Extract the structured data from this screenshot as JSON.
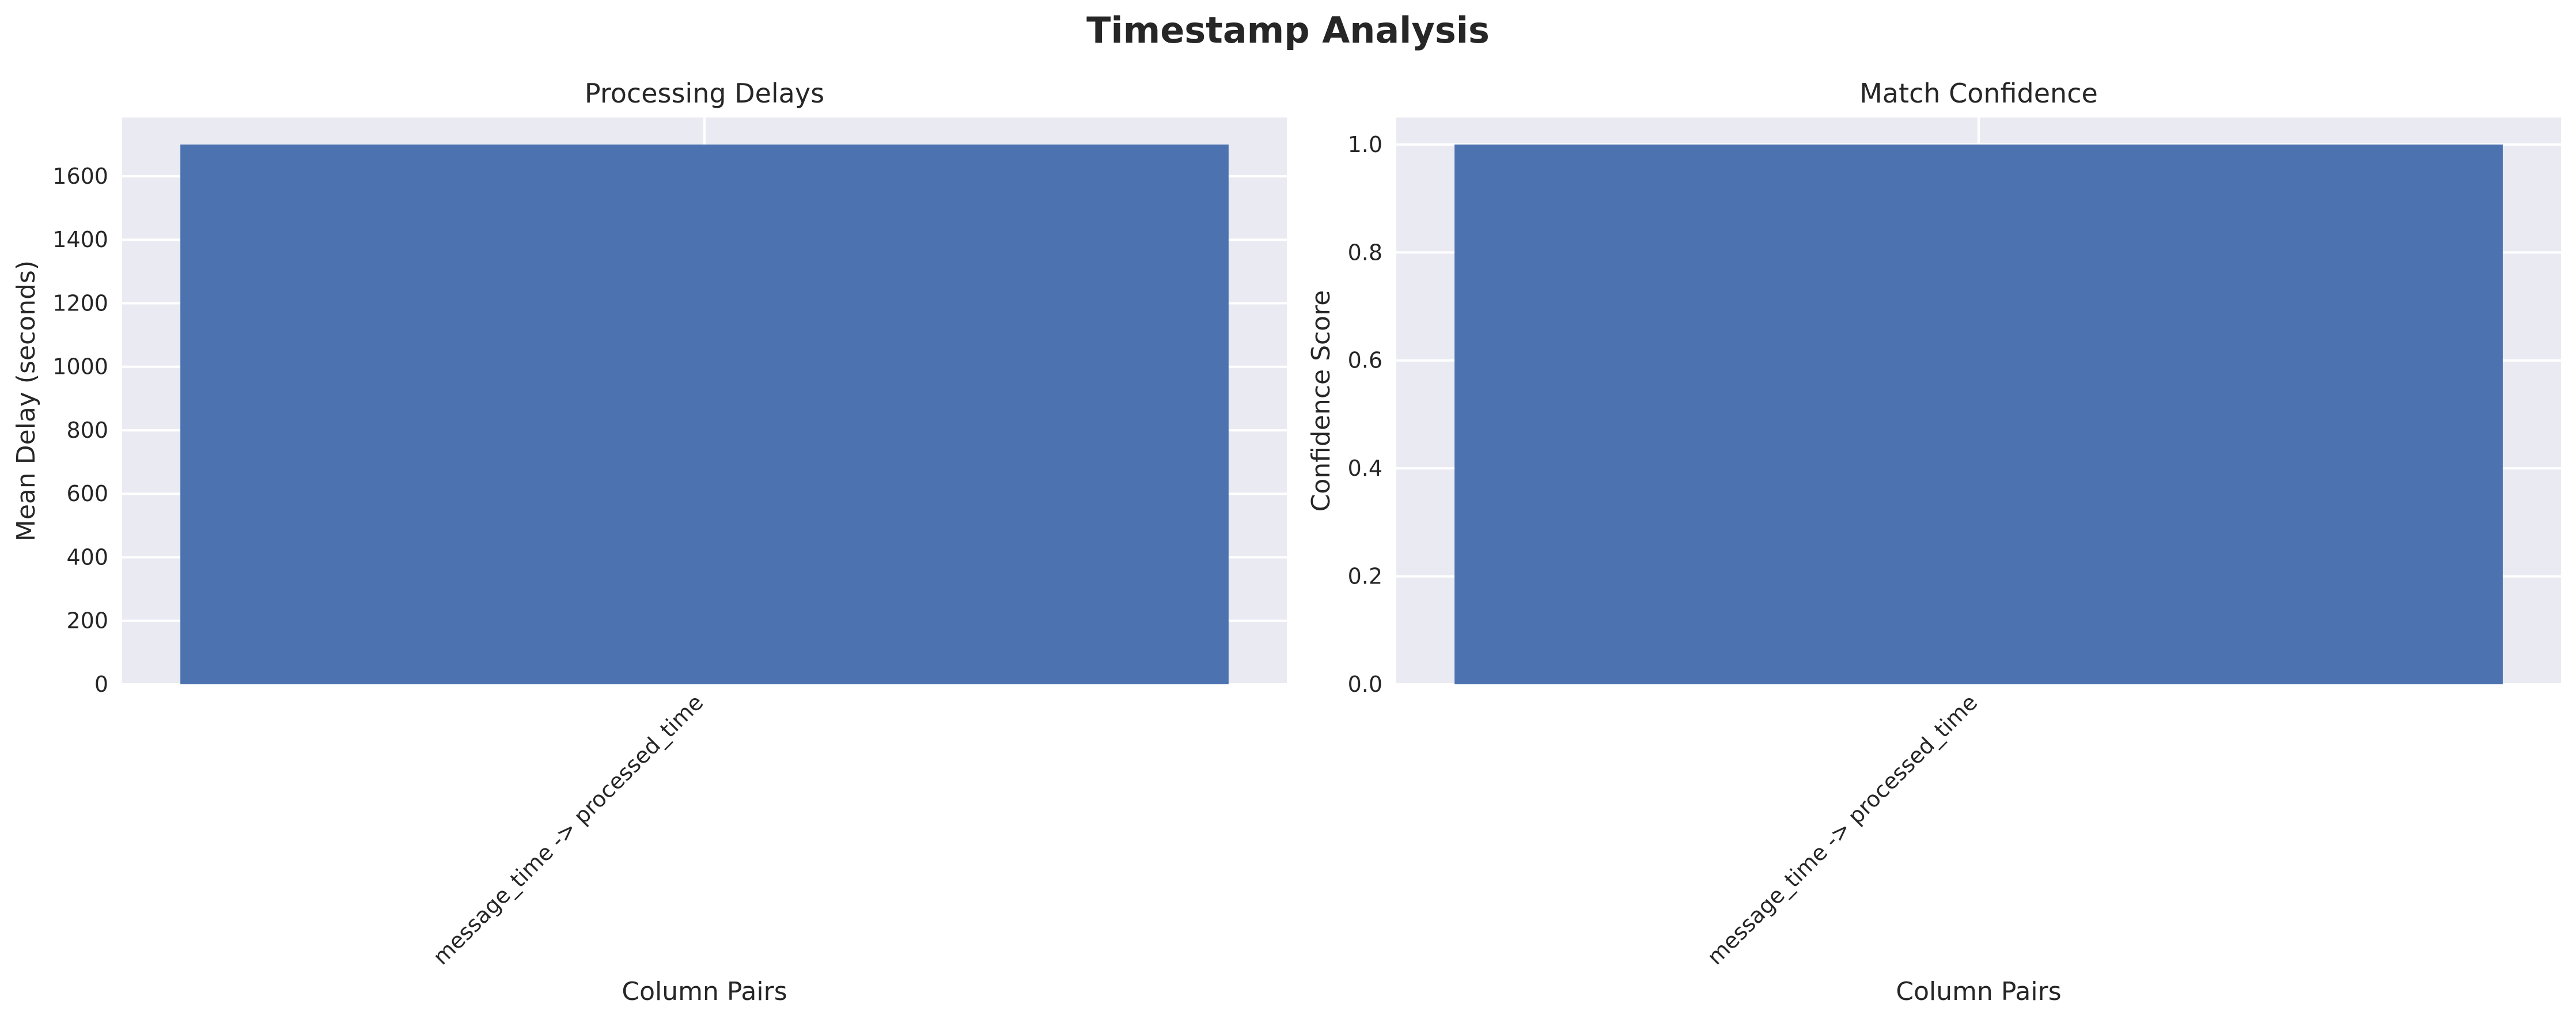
{
  "title": "Timestamp Analysis",
  "chart_data": [
    {
      "type": "bar",
      "title": "Processing Delays",
      "xlabel": "Column Pairs",
      "ylabel": "Mean Delay (seconds)",
      "categories": [
        "message_time -> processed_time"
      ],
      "values": [
        1700
      ],
      "ylim": [
        0,
        1785
      ],
      "yticks": [
        0,
        200,
        400,
        600,
        800,
        1000,
        1200,
        1400,
        1600
      ],
      "ytick_labels": [
        "0",
        "200",
        "400",
        "600",
        "800",
        "1000",
        "1200",
        "1400",
        "1600"
      ],
      "bar_color": "#4c72b0",
      "grid": true
    },
    {
      "type": "bar",
      "title": "Match Confidence",
      "xlabel": "Column Pairs",
      "ylabel": "Confidence Score",
      "categories": [
        "message_time -> processed_time"
      ],
      "values": [
        1.0
      ],
      "ylim": [
        0,
        1.05
      ],
      "yticks": [
        0,
        0.2,
        0.4,
        0.6,
        0.8,
        1.0
      ],
      "ytick_labels": [
        "0.0",
        "0.2",
        "0.4",
        "0.6",
        "0.8",
        "1.0"
      ],
      "bar_color": "#4c72b0",
      "grid": true
    }
  ]
}
